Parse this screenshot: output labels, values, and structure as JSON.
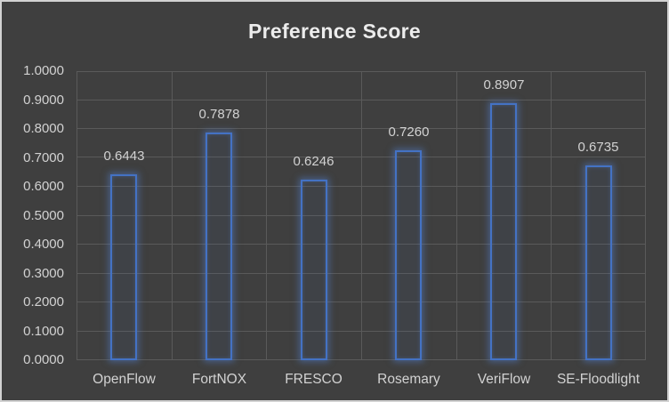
{
  "chart_data": {
    "type": "bar",
    "title": "Preference Score",
    "categories": [
      "OpenFlow",
      "FortNOX",
      "FRESCO",
      "Rosemary",
      "VeriFlow",
      "SE-Floodlight"
    ],
    "values": [
      0.6443,
      0.7878,
      0.6246,
      0.726,
      0.8907,
      0.6735
    ],
    "value_labels": [
      "0.6443",
      "0.7878",
      "0.6246",
      "0.7260",
      "0.8907",
      "0.6735"
    ],
    "xlabel": "",
    "ylabel": "",
    "ylim": [
      0,
      1
    ],
    "ytick_step": 0.1,
    "ytick_labels": [
      "0.0000",
      "0.1000",
      "0.2000",
      "0.3000",
      "0.4000",
      "0.5000",
      "0.6000",
      "0.7000",
      "0.8000",
      "0.9000",
      "1.0000"
    ],
    "grid": "both",
    "legend": "none",
    "bar_style": "hollow-outline-glow",
    "colors": {
      "background": "#3f3f3f",
      "frame_border": "#d2d2d2",
      "grid": "#5a5a5a",
      "bar_stroke": "#4472c4",
      "bar_glow": "rgba(84,130,210,0.50)",
      "title_text": "#ececec",
      "label_text": "#d2d2d2"
    }
  }
}
